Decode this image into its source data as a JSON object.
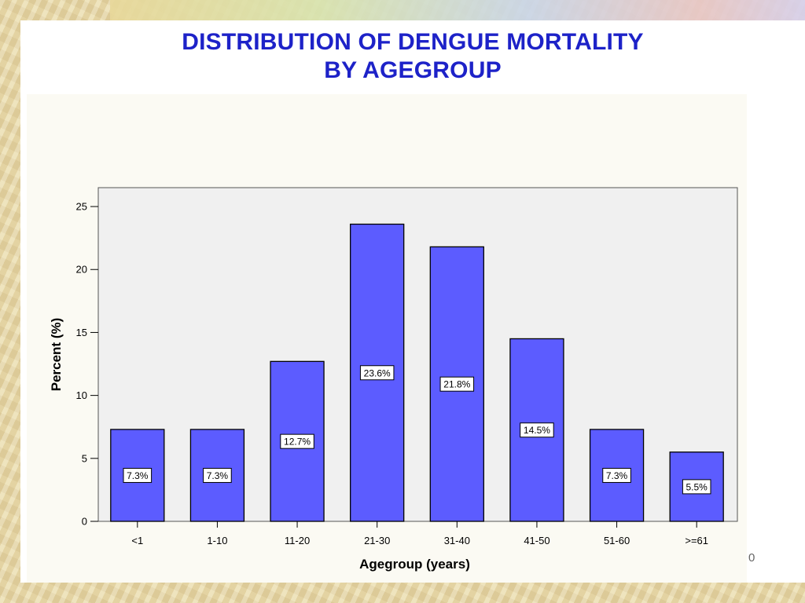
{
  "slide": {
    "title_line1": "DISTRIBUTION OF DENGUE MORTALITY",
    "title_line2": "BY AGEGROUP",
    "corner_mark": "0"
  },
  "colors": {
    "bar_fill": "#5c5cff",
    "title": "#1d22c8",
    "plot_bg": "#f0f0f0"
  },
  "chart_data": {
    "type": "bar",
    "title": "DISTRIBUTION OF DENGUE MORTALITY BY AGEGROUP",
    "xlabel": "Agegroup (years)",
    "ylabel": "Percent (%)",
    "categories": [
      "<1",
      "1-10",
      "11-20",
      "21-30",
      "31-40",
      "41-50",
      "51-60",
      ">=61"
    ],
    "values": [
      7.3,
      7.3,
      12.7,
      23.6,
      21.8,
      14.5,
      7.3,
      5.5
    ],
    "data_labels": [
      "7.3%",
      "7.3%",
      "12.7%",
      "23.6%",
      "21.8%",
      "14.5%",
      "7.3%",
      "5.5%"
    ],
    "ylim": [
      0,
      26.5
    ],
    "yticks": [
      0,
      5,
      10,
      15,
      20,
      25
    ],
    "grid": false,
    "legend": "none"
  }
}
